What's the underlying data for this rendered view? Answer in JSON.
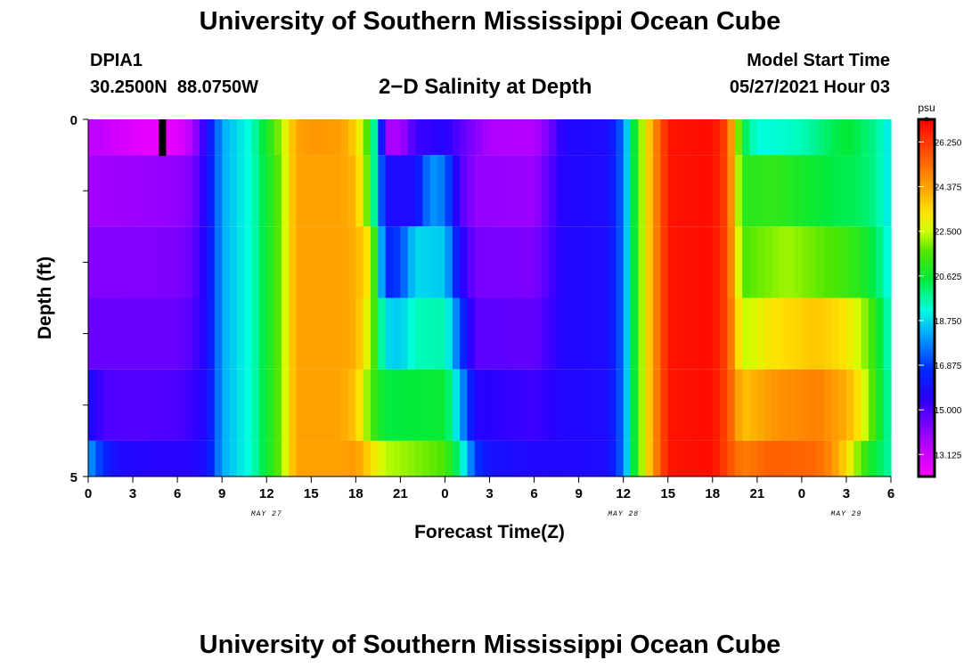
{
  "header": {
    "title": "University of Southern Mississippi Ocean Cube",
    "footer_title": "University of Southern Mississippi Ocean Cube",
    "station_id": "DPIA1",
    "station_coords": "30.2500N  88.0750W",
    "plot_title": "2−D Salinity at Depth",
    "model_start_label": "Model Start Time",
    "model_start_time": "05/27/2021 Hour 03"
  },
  "colors": {
    "background": "#ffffff",
    "axis": "#000000",
    "marker": "#000000"
  },
  "chart_data": {
    "type": "heatmap",
    "title": "2−D Salinity at Depth",
    "xlabel": "Forecast Time(Z)",
    "ylabel": "Depth (ft)",
    "x_range_hours": [
      0,
      54
    ],
    "y_range_ft": [
      0,
      5
    ],
    "x_ticks": [
      {
        "hour": 0,
        "label": "0"
      },
      {
        "hour": 3,
        "label": "3"
      },
      {
        "hour": 6,
        "label": "6"
      },
      {
        "hour": 9,
        "label": "9"
      },
      {
        "hour": 12,
        "label": "12"
      },
      {
        "hour": 15,
        "label": "15"
      },
      {
        "hour": 18,
        "label": "18"
      },
      {
        "hour": 21,
        "label": "21"
      },
      {
        "hour": 24,
        "label": "0"
      },
      {
        "hour": 27,
        "label": "3"
      },
      {
        "hour": 30,
        "label": "6"
      },
      {
        "hour": 33,
        "label": "9"
      },
      {
        "hour": 36,
        "label": "12"
      },
      {
        "hour": 39,
        "label": "15"
      },
      {
        "hour": 42,
        "label": "18"
      },
      {
        "hour": 45,
        "label": "21"
      },
      {
        "hour": 48,
        "label": "0"
      },
      {
        "hour": 51,
        "label": "3"
      },
      {
        "hour": 54,
        "label": "6"
      }
    ],
    "date_labels": [
      {
        "hour": 12,
        "label": "MAY 27"
      },
      {
        "hour": 36,
        "label": "MAY 28"
      },
      {
        "hour": 51,
        "label": "MAY 29"
      }
    ],
    "y_ticks": [
      {
        "depth": 0,
        "label": "0"
      },
      {
        "depth": 1,
        "label": ""
      },
      {
        "depth": 2,
        "label": ""
      },
      {
        "depth": 3,
        "label": ""
      },
      {
        "depth": 4,
        "label": ""
      },
      {
        "depth": 5,
        "label": "5"
      }
    ],
    "colorbar": {
      "unit": "psu",
      "min": 12.2,
      "max": 27.2,
      "tick_values": [
        26.25,
        24.375,
        22.5,
        20.625,
        18.75,
        16.875,
        15.0,
        13.125
      ],
      "tick_labels": [
        "26.250",
        "24.375",
        "22.500",
        "20.625",
        "18.750",
        "16.875",
        "15.000",
        "13.125"
      ]
    },
    "marker": {
      "label": "current time",
      "hour": 5,
      "depth_top": 0,
      "depth_bottom": 0.5
    },
    "depth_layers": [
      {
        "from": 0.0,
        "to": 0.5,
        "keys": [
          [
            0,
            13.4
          ],
          [
            4,
            12.6
          ],
          [
            6,
            12.7
          ],
          [
            7,
            13.5
          ],
          [
            8,
            15.8
          ],
          [
            9,
            18.2
          ],
          [
            11,
            19.4
          ],
          [
            12,
            20.8
          ],
          [
            13,
            22.2
          ],
          [
            14,
            24.4
          ],
          [
            15,
            24.6
          ],
          [
            17,
            24.5
          ],
          [
            18,
            23.6
          ],
          [
            19,
            21.0
          ],
          [
            19.5,
            18.6
          ],
          [
            20,
            13.8
          ],
          [
            21,
            13.6
          ],
          [
            22,
            15.2
          ],
          [
            24,
            15.6
          ],
          [
            25,
            14.8
          ],
          [
            27,
            13.6
          ],
          [
            30,
            13.5
          ],
          [
            31,
            14.4
          ],
          [
            32,
            15.7
          ],
          [
            35,
            15.8
          ],
          [
            36,
            17.6
          ],
          [
            37,
            21.5
          ],
          [
            38,
            24.5
          ],
          [
            39,
            26.9
          ],
          [
            42,
            27.0
          ],
          [
            43,
            26.0
          ],
          [
            44,
            20.5
          ],
          [
            45,
            19.2
          ],
          [
            48,
            19.5
          ],
          [
            51,
            20.6
          ],
          [
            53,
            19.8
          ],
          [
            54,
            18.8
          ]
        ]
      },
      {
        "from": 0.5,
        "to": 1.5,
        "keys": [
          [
            0,
            13.8
          ],
          [
            6,
            14.0
          ],
          [
            7,
            14.3
          ],
          [
            8,
            15.8
          ],
          [
            9,
            18.2
          ],
          [
            11,
            19.4
          ],
          [
            12,
            20.6
          ],
          [
            13,
            22.0
          ],
          [
            14,
            24.4
          ],
          [
            17,
            24.4
          ],
          [
            18,
            24.0
          ],
          [
            19,
            21.2
          ],
          [
            20,
            15.8
          ],
          [
            22,
            15.8
          ],
          [
            23,
            18.0
          ],
          [
            24,
            17.6
          ],
          [
            25,
            15.0
          ],
          [
            26,
            14.0
          ],
          [
            30,
            13.9
          ],
          [
            32,
            15.7
          ],
          [
            35,
            15.8
          ],
          [
            36,
            17.6
          ],
          [
            37,
            21.5
          ],
          [
            38,
            24.5
          ],
          [
            39,
            26.9
          ],
          [
            42,
            27.0
          ],
          [
            43,
            26.0
          ],
          [
            44,
            21.0
          ],
          [
            46,
            21.2
          ],
          [
            50,
            20.4
          ],
          [
            52,
            20.2
          ],
          [
            53,
            19.8
          ],
          [
            54,
            18.8
          ]
        ]
      },
      {
        "from": 1.5,
        "to": 2.5,
        "keys": [
          [
            0,
            14.2
          ],
          [
            6,
            14.3
          ],
          [
            7,
            14.6
          ],
          [
            8,
            15.8
          ],
          [
            9,
            18.2
          ],
          [
            11,
            19.4
          ],
          [
            12,
            20.6
          ],
          [
            13,
            22.0
          ],
          [
            14,
            24.4
          ],
          [
            17,
            24.4
          ],
          [
            18,
            24.2
          ],
          [
            19,
            23.0
          ],
          [
            20,
            16.5
          ],
          [
            21,
            17.0
          ],
          [
            22,
            18.8
          ],
          [
            24,
            18.6
          ],
          [
            25,
            15.8
          ],
          [
            26,
            14.4
          ],
          [
            30,
            14.3
          ],
          [
            32,
            15.7
          ],
          [
            35,
            15.8
          ],
          [
            36,
            17.6
          ],
          [
            37,
            21.5
          ],
          [
            38,
            24.5
          ],
          [
            39,
            26.9
          ],
          [
            42,
            27.0
          ],
          [
            43,
            26.0
          ],
          [
            44,
            21.6
          ],
          [
            47,
            22.2
          ],
          [
            50,
            21.6
          ],
          [
            52,
            21.0
          ],
          [
            53,
            20.2
          ],
          [
            54,
            19.0
          ]
        ]
      },
      {
        "from": 2.5,
        "to": 3.5,
        "keys": [
          [
            0,
            14.6
          ],
          [
            6,
            14.6
          ],
          [
            7,
            14.9
          ],
          [
            8,
            15.8
          ],
          [
            9,
            18.2
          ],
          [
            11,
            19.4
          ],
          [
            12,
            20.6
          ],
          [
            13,
            22.0
          ],
          [
            14,
            24.4
          ],
          [
            17,
            24.4
          ],
          [
            18,
            24.2
          ],
          [
            19,
            22.4
          ],
          [
            20,
            18.8
          ],
          [
            21,
            18.6
          ],
          [
            22,
            19.5
          ],
          [
            24,
            19.6
          ],
          [
            25,
            17.2
          ],
          [
            26,
            14.8
          ],
          [
            30,
            14.7
          ],
          [
            32,
            15.7
          ],
          [
            35,
            15.8
          ],
          [
            36,
            17.6
          ],
          [
            37,
            21.5
          ],
          [
            38,
            24.5
          ],
          [
            39,
            26.9
          ],
          [
            42,
            27.0
          ],
          [
            43,
            26.0
          ],
          [
            44,
            22.4
          ],
          [
            46,
            23.2
          ],
          [
            49,
            23.8
          ],
          [
            51,
            23.2
          ],
          [
            52,
            22.4
          ],
          [
            53,
            21.0
          ],
          [
            54,
            19.2
          ]
        ]
      },
      {
        "from": 3.5,
        "to": 4.5,
        "keys": [
          [
            0,
            16.0
          ],
          [
            1,
            15.0
          ],
          [
            3,
            14.9
          ],
          [
            6,
            15.0
          ],
          [
            7,
            15.3
          ],
          [
            8,
            15.8
          ],
          [
            9,
            18.2
          ],
          [
            11,
            19.4
          ],
          [
            12,
            20.6
          ],
          [
            13,
            22.0
          ],
          [
            14,
            24.4
          ],
          [
            17,
            24.4
          ],
          [
            18,
            23.8
          ],
          [
            19,
            21.6
          ],
          [
            20,
            20.4
          ],
          [
            24,
            20.6
          ],
          [
            25,
            18.4
          ],
          [
            26,
            15.6
          ],
          [
            30,
            15.2
          ],
          [
            32,
            15.7
          ],
          [
            35,
            15.8
          ],
          [
            36,
            17.6
          ],
          [
            37,
            21.5
          ],
          [
            38,
            24.5
          ],
          [
            39,
            26.9
          ],
          [
            42,
            27.0
          ],
          [
            43,
            26.0
          ],
          [
            44,
            23.8
          ],
          [
            46,
            24.6
          ],
          [
            49,
            25.0
          ],
          [
            51,
            24.2
          ],
          [
            52,
            23.0
          ],
          [
            53,
            21.2
          ],
          [
            54,
            19.4
          ]
        ]
      },
      {
        "from": 4.5,
        "to": 5.0,
        "keys": [
          [
            0,
            18.2
          ],
          [
            1,
            16.6
          ],
          [
            2,
            15.8
          ],
          [
            4,
            15.6
          ],
          [
            7,
            15.6
          ],
          [
            8,
            16.0
          ],
          [
            9,
            18.2
          ],
          [
            11,
            19.4
          ],
          [
            12,
            20.6
          ],
          [
            13,
            22.0
          ],
          [
            14,
            24.4
          ],
          [
            17,
            24.4
          ],
          [
            18,
            24.6
          ],
          [
            19,
            23.4
          ],
          [
            20,
            22.4
          ],
          [
            24,
            21.6
          ],
          [
            25,
            19.8
          ],
          [
            26,
            17.0
          ],
          [
            27,
            16.0
          ],
          [
            30,
            15.7
          ],
          [
            32,
            15.7
          ],
          [
            35,
            15.8
          ],
          [
            36,
            17.6
          ],
          [
            37,
            21.5
          ],
          [
            38,
            24.5
          ],
          [
            39,
            26.9
          ],
          [
            42,
            27.0
          ],
          [
            43,
            26.0
          ],
          [
            44,
            25.0
          ],
          [
            46,
            25.6
          ],
          [
            49,
            25.4
          ],
          [
            50,
            24.8
          ],
          [
            51,
            23.4
          ],
          [
            52,
            21.6
          ],
          [
            53,
            20.4
          ],
          [
            54,
            19.6
          ]
        ]
      }
    ]
  }
}
